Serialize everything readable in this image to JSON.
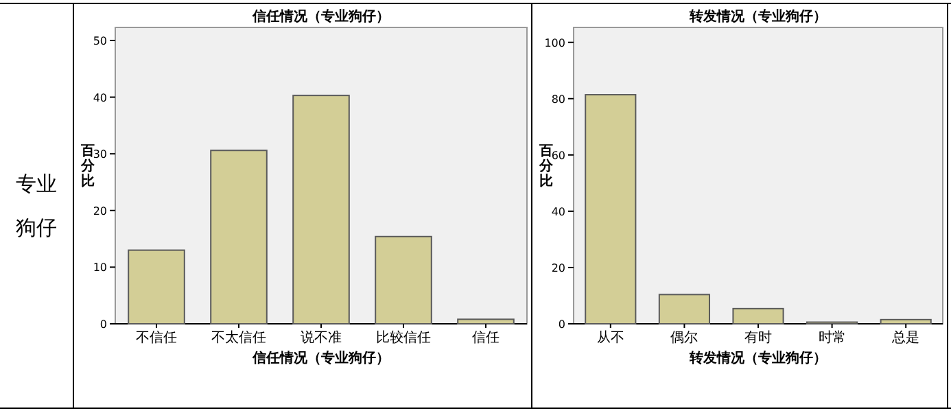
{
  "chart_data": [
    {
      "type": "other",
      "annotations": [
        "专业狗仔"
      ]
    },
    {
      "type": "bar",
      "title": "信任情况（专业狗仔）",
      "xlabel": "信任情况（专业狗仔）",
      "ylabel": "百分比",
      "categories": [
        "不信任",
        "不太信任",
        "说不准",
        "比较信任",
        "信任"
      ],
      "values": [
        13,
        30.6,
        40.3,
        15.4,
        0.8
      ],
      "color": "#d3ce96",
      "ylim": [
        0,
        52.3
      ],
      "yticks": [
        0,
        10,
        20,
        30,
        40,
        50
      ]
    },
    {
      "type": "bar",
      "title": "转发情况（专业狗仔）",
      "xlabel": "转发情况（专业狗仔）",
      "ylabel": "百分比",
      "categories": [
        "从不",
        "偶尔",
        "有时",
        "时常",
        "总是"
      ],
      "values": [
        81.4,
        10.4,
        5.4,
        0.6,
        1.5
      ],
      "color": "#d3ce96",
      "ylim": [
        0,
        105.3
      ],
      "yticks": [
        0,
        20,
        40,
        60,
        80,
        100
      ]
    }
  ]
}
